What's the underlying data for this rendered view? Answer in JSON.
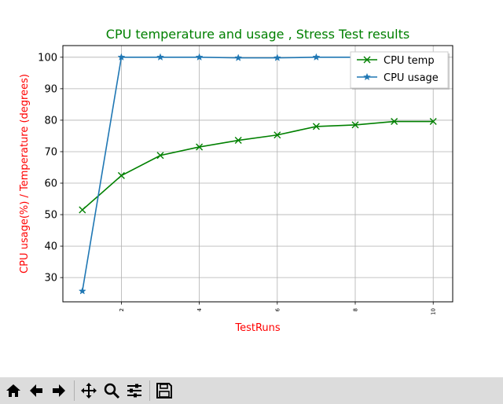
{
  "chart_data": {
    "type": "line",
    "title": "CPU temperature and usage , Stress Test results",
    "xlabel": "TestRuns",
    "ylabel": "CPU usage(%) / Temperature (degrees)",
    "x": [
      1,
      2,
      3,
      4,
      5,
      6,
      7,
      8,
      9,
      10
    ],
    "xticks": [
      2,
      4,
      6,
      8,
      10
    ],
    "yticks": [
      30,
      40,
      50,
      60,
      70,
      80,
      90,
      100
    ],
    "xlim": [
      0.5,
      10.5
    ],
    "ylim": [
      22.3,
      103.7
    ],
    "grid": true,
    "legend_position": "upper right",
    "series": [
      {
        "name": "CPU temp",
        "color": "#008000",
        "marker": "x",
        "values": [
          51.5,
          62.4,
          68.8,
          71.5,
          73.6,
          75.3,
          78.0,
          78.5,
          79.6,
          79.6
        ]
      },
      {
        "name": "CPU usage",
        "color": "#1f77b4",
        "marker": "star",
        "values": [
          25.7,
          100.0,
          100.0,
          100.0,
          99.8,
          99.8,
          100.0,
          100.0,
          100.0,
          100.0
        ]
      }
    ],
    "title_color": "#008000",
    "label_color": "#ff0000"
  },
  "toolbar": {
    "buttons": [
      {
        "name": "home-button",
        "icon": "home-icon"
      },
      {
        "name": "back-button",
        "icon": "arrow-left-icon"
      },
      {
        "name": "forward-button",
        "icon": "arrow-right-icon"
      },
      {
        "name": "pan-button",
        "icon": "move-icon"
      },
      {
        "name": "zoom-button",
        "icon": "magnifier-icon"
      },
      {
        "name": "configure-subplots-button",
        "icon": "sliders-icon"
      },
      {
        "name": "save-button",
        "icon": "floppy-disk-icon"
      }
    ]
  }
}
